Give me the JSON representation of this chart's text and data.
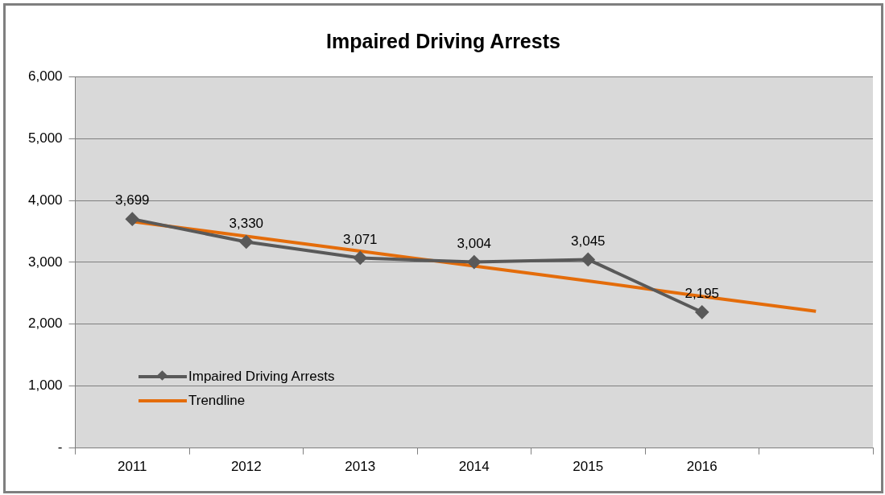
{
  "chart_data": {
    "type": "line",
    "title": "Impaired Driving Arrests",
    "categories": [
      "2011",
      "2012",
      "2013",
      "2014",
      "2015",
      "2016",
      null
    ],
    "series": [
      {
        "name": "Impaired Driving Arrests",
        "color": "#595959",
        "values": [
          3699,
          3330,
          3071,
          3004,
          3045,
          2195,
          null
        ],
        "marker": "diamond",
        "value_labels": [
          "3,699",
          "3,330",
          "3,071",
          "3,004",
          "3,045",
          "2,195",
          null
        ]
      },
      {
        "name": "Trendline",
        "color": "#e46c0a",
        "values": [
          3660,
          3420,
          3180,
          2940,
          2700,
          2450,
          2210
        ],
        "marker": "none"
      }
    ],
    "ylim": [
      0,
      6000
    ],
    "yticks": [
      {
        "value": 0,
        "label": "-"
      },
      {
        "value": 1000,
        "label": "1,000"
      },
      {
        "value": 2000,
        "label": "2,000"
      },
      {
        "value": 3000,
        "label": "3,000"
      },
      {
        "value": 4000,
        "label": "4,000"
      },
      {
        "value": 5000,
        "label": "5,000"
      },
      {
        "value": 6000,
        "label": "6,000"
      }
    ],
    "grid": "y",
    "legend": "bottom left"
  }
}
